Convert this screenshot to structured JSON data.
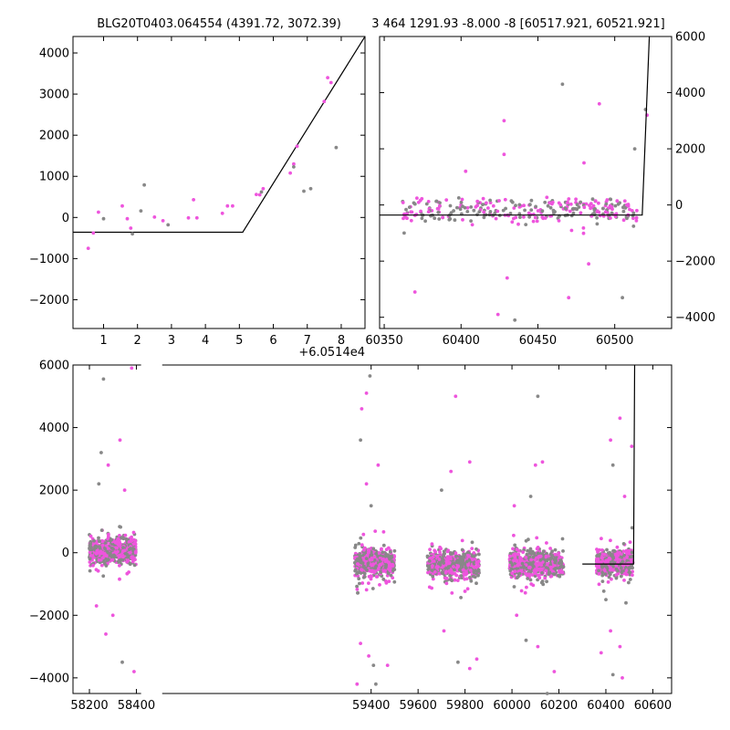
{
  "chart_data": [
    {
      "panel": "top-left",
      "type": "scatter",
      "title": "BLG20T0403.064554 (4391.72, 3072.39)",
      "x_offset_label": "+6.0514e4",
      "xlim": [
        0.1,
        8.7
      ],
      "ylim": [
        -2700,
        4400
      ],
      "xticks": [
        1,
        2,
        3,
        4,
        5,
        6,
        7,
        8
      ],
      "yticks": [
        -2000,
        -1000,
        0,
        1000,
        2000,
        3000,
        4000
      ],
      "model_line": {
        "x": [
          0.1,
          5.1,
          8.7
        ],
        "y": [
          -360,
          -360,
          4400
        ]
      },
      "series": [
        {
          "color": "#ee55dd",
          "points": [
            [
              0.55,
              -750
            ],
            [
              0.7,
              -380
            ],
            [
              0.85,
              130
            ],
            [
              1.55,
              280
            ],
            [
              1.7,
              -30
            ],
            [
              1.8,
              -260
            ],
            [
              2.5,
              10
            ],
            [
              2.75,
              -80
            ],
            [
              3.5,
              -10
            ],
            [
              3.65,
              430
            ],
            [
              3.75,
              -10
            ],
            [
              4.5,
              100
            ],
            [
              4.65,
              280
            ],
            [
              4.8,
              280
            ],
            [
              5.5,
              560
            ],
            [
              5.6,
              550
            ],
            [
              5.7,
              700
            ],
            [
              6.5,
              1080
            ],
            [
              6.6,
              1300
            ],
            [
              6.7,
              1730
            ],
            [
              7.5,
              2820
            ],
            [
              7.6,
              3400
            ],
            [
              7.7,
              3280
            ]
          ]
        },
        {
          "color": "#888888",
          "points": [
            [
              1.0,
              -30
            ],
            [
              1.85,
              -400
            ],
            [
              2.1,
              160
            ],
            [
              2.2,
              790
            ],
            [
              2.9,
              -180
            ],
            [
              5.65,
              620
            ],
            [
              6.6,
              1230
            ],
            [
              6.9,
              640
            ],
            [
              7.1,
              700
            ],
            [
              7.85,
              1700
            ]
          ]
        }
      ]
    },
    {
      "panel": "top-right",
      "type": "scatter",
      "title": "3 464 1291.93 -8.000 -8 [60517.921, 60521.921]",
      "xlim": [
        60347,
        60537
      ],
      "ylim": [
        -4400,
        6000
      ],
      "xticks": [
        60350,
        60400,
        60450,
        60500
      ],
      "yticks": [
        -4000,
        -2000,
        0,
        2000,
        4000,
        6000
      ],
      "model_line": {
        "x": [
          60347,
          60517.9,
          60522.5
        ],
        "y": [
          -360,
          -360,
          6000
        ]
      },
      "scatter_seed": 7,
      "scatter_n": 240,
      "scatter_x": [
        60362,
        60515
      ],
      "bulk_y": [
        -500,
        200
      ],
      "outliers": [
        [
          60466,
          4300
        ],
        [
          60490,
          3600
        ],
        [
          60428,
          3000
        ],
        [
          60520,
          3400
        ],
        [
          60521,
          3200
        ],
        [
          60428,
          1800
        ],
        [
          60513,
          2000
        ],
        [
          60480,
          1500
        ],
        [
          60403,
          1200
        ],
        [
          60363,
          -1000
        ],
        [
          60370,
          -3100
        ],
        [
          60424,
          -3900
        ],
        [
          60435,
          -4100
        ],
        [
          60483,
          -2100
        ],
        [
          60430,
          -2600
        ],
        [
          60505,
          -3300
        ],
        [
          60470,
          -3300
        ]
      ]
    },
    {
      "panel": "bottom",
      "type": "scatter",
      "xlim": [
        58130,
        60680
      ],
      "ylim": [
        -4500,
        6000
      ],
      "xticks": [
        58200,
        58400,
        59400,
        59600,
        59800,
        60000,
        60200,
        60400,
        60600
      ],
      "yticks": [
        -4000,
        -2000,
        0,
        2000,
        4000,
        6000
      ],
      "break_between": [
        58420,
        58510
      ],
      "clusters": [
        {
          "x": [
            58200,
            58400
          ],
          "center_y": 60,
          "spread_y": 480
        },
        {
          "x": [
            59330,
            59500
          ],
          "center_y": -320,
          "spread_y": 450
        },
        {
          "x": [
            59640,
            59860
          ],
          "center_y": -380,
          "spread_y": 470
        },
        {
          "x": [
            59990,
            60220
          ],
          "center_y": -360,
          "spread_y": 460
        },
        {
          "x": [
            60360,
            60515
          ],
          "center_y": -330,
          "spread_y": 380
        }
      ],
      "model_line": {
        "x": [
          60300,
          60517.9,
          60522.5
        ],
        "y": [
          -360,
          -360,
          6000
        ]
      },
      "outliers": [
        [
          58260,
          5550
        ],
        [
          58380,
          5900
        ],
        [
          58330,
          3600
        ],
        [
          58250,
          3200
        ],
        [
          58280,
          2800
        ],
        [
          58350,
          2000
        ],
        [
          58240,
          2200
        ],
        [
          58230,
          -1700
        ],
        [
          58270,
          -2600
        ],
        [
          58340,
          -3500
        ],
        [
          58300,
          -2000
        ],
        [
          58390,
          -3800
        ],
        [
          59395,
          5650
        ],
        [
          59380,
          5100
        ],
        [
          59360,
          4600
        ],
        [
          59355,
          3600
        ],
        [
          59430,
          2800
        ],
        [
          59380,
          2200
        ],
        [
          59400,
          1500
        ],
        [
          59355,
          -2900
        ],
        [
          59390,
          -3300
        ],
        [
          59410,
          -3600
        ],
        [
          59470,
          -3600
        ],
        [
          59340,
          -4200
        ],
        [
          59420,
          -4200
        ],
        [
          59760,
          5000
        ],
        [
          59740,
          2600
        ],
        [
          59700,
          2000
        ],
        [
          59820,
          2900
        ],
        [
          59710,
          -2500
        ],
        [
          59770,
          -3500
        ],
        [
          59820,
          -3700
        ],
        [
          59850,
          -3400
        ],
        [
          60110,
          5000
        ],
        [
          60130,
          2900
        ],
        [
          60100,
          2800
        ],
        [
          60080,
          1800
        ],
        [
          60010,
          1500
        ],
        [
          60020,
          -2000
        ],
        [
          60060,
          -2800
        ],
        [
          60110,
          -3000
        ],
        [
          60180,
          -3800
        ],
        [
          60150,
          -4500
        ],
        [
          60460,
          4300
        ],
        [
          60420,
          3600
        ],
        [
          60430,
          2800
        ],
        [
          60480,
          1800
        ],
        [
          60510,
          3400
        ],
        [
          60400,
          -1500
        ],
        [
          60420,
          -2500
        ],
        [
          60460,
          -3000
        ],
        [
          60430,
          -3900
        ],
        [
          60470,
          -4000
        ],
        [
          60380,
          -3200
        ]
      ]
    }
  ],
  "colors": {
    "pink": "#ee55dd",
    "gray": "#888888",
    "line": "#000000"
  }
}
